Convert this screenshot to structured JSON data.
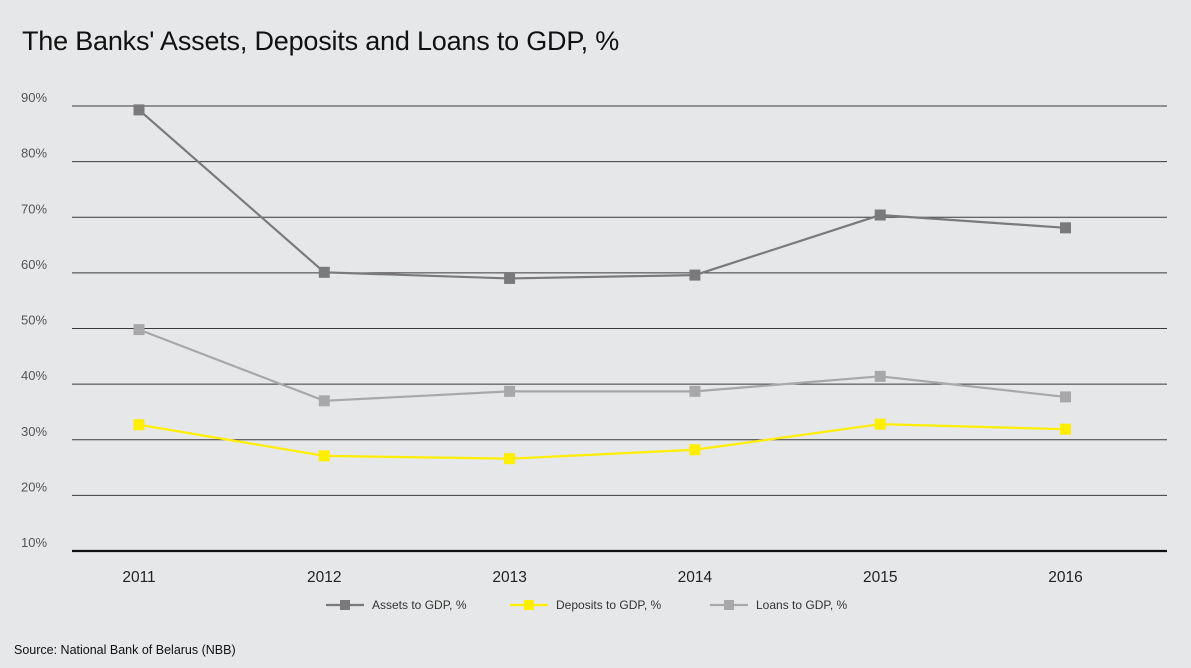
{
  "title": "The Banks' Assets, Deposits and Loans to GDP, %",
  "source": "Source: National Bank of Belarus (NBB)",
  "chart_data": {
    "type": "line",
    "categories": [
      "2011",
      "2012",
      "2013",
      "2014",
      "2015",
      "2016"
    ],
    "ylim": [
      10,
      90
    ],
    "yticks": [
      10,
      20,
      30,
      40,
      50,
      60,
      70,
      80,
      90
    ],
    "ytick_labels": [
      "10%",
      "20%",
      "30%",
      "40%",
      "50%",
      "60%",
      "70%",
      "80%",
      "90%"
    ],
    "grid": true,
    "legend_position": "bottom",
    "series": [
      {
        "name": "Assets to GDP, %",
        "color": "#7a7a7c",
        "values": [
          89.3,
          60.1,
          59.0,
          59.6,
          70.4,
          68.1
        ]
      },
      {
        "name": "Deposits to GDP, %",
        "color": "#ffee00",
        "values": [
          32.7,
          27.1,
          26.6,
          28.2,
          32.8,
          31.9
        ]
      },
      {
        "name": "Loans to GDP, %",
        "color": "#a8a8aa",
        "values": [
          49.8,
          37.0,
          38.7,
          38.7,
          41.4,
          37.7
        ]
      }
    ]
  }
}
